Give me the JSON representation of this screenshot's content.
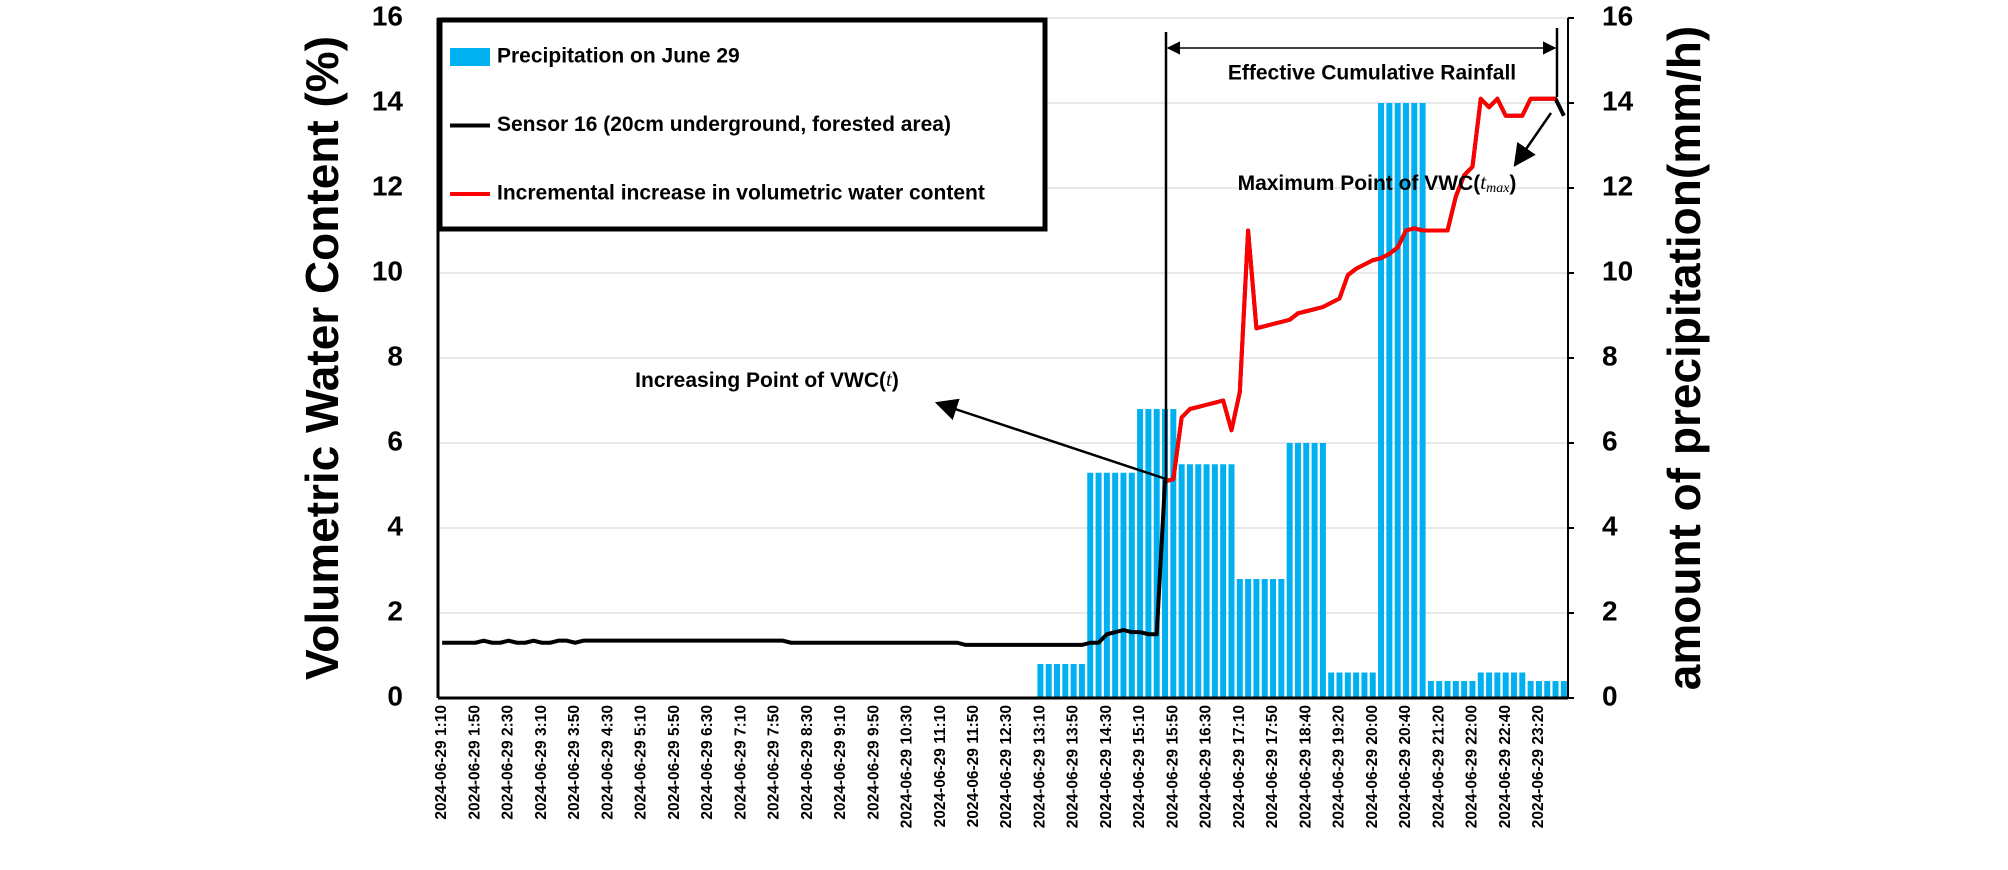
{
  "chart_data": {
    "type": "combo",
    "ylabel": "Volumetric Water Content (%)",
    "y2label": "amount of precipitation(mm/h)",
    "ylim": [
      0,
      16
    ],
    "yticks": [
      0,
      2,
      4,
      6,
      8,
      10,
      12,
      14,
      16
    ],
    "y2lim": [
      0,
      16
    ],
    "y2ticks": [
      0,
      2,
      4,
      6,
      8,
      10,
      12,
      14,
      16
    ],
    "grid": true,
    "legend": "upper left",
    "annotations": {
      "effective": "Effective Cumulative Rainfall",
      "increasing": [
        "Increasing Point of VWC(",
        "t",
        ")"
      ],
      "maximum": [
        "Maximum Point of VWC(",
        "t",
        "max",
        ")"
      ]
    },
    "categories": [
      "2024-06-29 1:10",
      null,
      null,
      null,
      "2024-06-29 1:50",
      null,
      null,
      null,
      "2024-06-29 2:30",
      null,
      null,
      null,
      "2024-06-29 3:10",
      null,
      null,
      null,
      "2024-06-29 3:50",
      null,
      null,
      null,
      "2024-06-29 4:30",
      null,
      null,
      null,
      "2024-06-29 5:10",
      null,
      null,
      null,
      "2024-06-29 5:50",
      null,
      null,
      null,
      "2024-06-29 6:30",
      null,
      null,
      null,
      "2024-06-29 7:10",
      null,
      null,
      null,
      "2024-06-29 7:50",
      null,
      null,
      null,
      "2024-06-29 8:30",
      null,
      null,
      null,
      "2024-06-29 9:10",
      null,
      null,
      null,
      "2024-06-29 9:50",
      null,
      null,
      null,
      "2024-06-29 10:30",
      null,
      null,
      null,
      "2024-06-29 11:10",
      null,
      null,
      null,
      "2024-06-29 11:50",
      null,
      null,
      null,
      "2024-06-29 12:30",
      null,
      null,
      null,
      "2024-06-29 13:10",
      null,
      null,
      null,
      "2024-06-29 13:50",
      null,
      null,
      null,
      "2024-06-29 14:30",
      null,
      null,
      null,
      "2024-06-29 15:10",
      null,
      null,
      null,
      "2024-06-29 15:50",
      null,
      null,
      null,
      "2024-06-29 16:30",
      null,
      null,
      null,
      "2024-06-29 17:10",
      null,
      null,
      null,
      "2024-06-29 17:50",
      null,
      null,
      null,
      "2024-06-29 18:40",
      null,
      null,
      null,
      "2024-06-29 19:20",
      null,
      null,
      null,
      "2024-06-29 20:00",
      null,
      null,
      null,
      "2024-06-29 20:40",
      null,
      null,
      null,
      "2024-06-29 21:20",
      null,
      null,
      null,
      "2024-06-29 22:00",
      null,
      null,
      null,
      "2024-06-29 22:40",
      null,
      null,
      null,
      "2024-06-29 23:20",
      null,
      null,
      null
    ],
    "series": [
      {
        "name": "Precipitation on June 29",
        "type": "bar",
        "axis": "y2",
        "color": "#00b0f0",
        "values": [
          0,
          0,
          0,
          0,
          0,
          0,
          0,
          0,
          0,
          0,
          0,
          0,
          0,
          0,
          0,
          0,
          0,
          0,
          0,
          0,
          0,
          0,
          0,
          0,
          0,
          0,
          0,
          0,
          0,
          0,
          0,
          0,
          0,
          0,
          0,
          0,
          0,
          0,
          0,
          0,
          0,
          0,
          0,
          0,
          0,
          0,
          0,
          0,
          0,
          0,
          0,
          0,
          0,
          0,
          0,
          0,
          0,
          0,
          0,
          0,
          0,
          0,
          0,
          0,
          0,
          0,
          0,
          0,
          0,
          0,
          0,
          0,
          0.8,
          0.8,
          0.8,
          0.8,
          0.8,
          0.8,
          5.3,
          5.3,
          5.3,
          5.3,
          5.3,
          5.3,
          6.8,
          6.8,
          6.8,
          6.8,
          6.8,
          5.5,
          5.5,
          5.5,
          5.5,
          5.5,
          5.5,
          5.5,
          2.8,
          2.8,
          2.8,
          2.8,
          2.8,
          2.8,
          6.0,
          6.0,
          6.0,
          6.0,
          6.0,
          0.6,
          0.6,
          0.6,
          0.6,
          0.6,
          0.6,
          14,
          14,
          14,
          14,
          14,
          14,
          0.4,
          0.4,
          0.4,
          0.4,
          0.4,
          0.4,
          0.6,
          0.6,
          0.6,
          0.6,
          0.6,
          0.6,
          0.4,
          0.4,
          0.4,
          0.4,
          0.4
        ]
      },
      {
        "name": "Sensor 16 (20cm underground, forested area)",
        "type": "line",
        "color": "#000000",
        "values": [
          1.3,
          1.3,
          1.3,
          1.3,
          1.3,
          1.35,
          1.3,
          1.3,
          1.35,
          1.3,
          1.3,
          1.35,
          1.3,
          1.3,
          1.35,
          1.35,
          1.3,
          1.35,
          1.35,
          1.35,
          1.35,
          1.35,
          1.35,
          1.35,
          1.35,
          1.35,
          1.35,
          1.35,
          1.35,
          1.35,
          1.35,
          1.35,
          1.35,
          1.35,
          1.35,
          1.35,
          1.35,
          1.35,
          1.35,
          1.35,
          1.35,
          1.35,
          1.3,
          1.3,
          1.3,
          1.3,
          1.3,
          1.3,
          1.3,
          1.3,
          1.3,
          1.3,
          1.3,
          1.3,
          1.3,
          1.3,
          1.3,
          1.3,
          1.3,
          1.3,
          1.3,
          1.3,
          1.3,
          1.25,
          1.25,
          1.25,
          1.25,
          1.25,
          1.25,
          1.25,
          1.25,
          1.25,
          1.25,
          1.25,
          1.25,
          1.25,
          1.25,
          1.25,
          1.3,
          1.3,
          1.5,
          1.55,
          1.6,
          1.55,
          1.55,
          1.5,
          1.5,
          5.1,
          5.15,
          6.6,
          6.8,
          6.85,
          6.9,
          6.95,
          7.0,
          6.3,
          7.2,
          11.0,
          8.7,
          8.75,
          8.8,
          8.85,
          8.9,
          9.05,
          9.1,
          9.15,
          9.2,
          9.3,
          9.4,
          9.95,
          10.1,
          10.2,
          10.3,
          10.35,
          10.45,
          10.6,
          11.0,
          11.05,
          11.0,
          11.0,
          11.0,
          11.0,
          11.8,
          12.3,
          12.5,
          14.1,
          13.9,
          14.1,
          13.7,
          13.7,
          13.7,
          14.1,
          14.1,
          14.1,
          14.1,
          13.7
        ]
      },
      {
        "name": "Incremental increase in volumetric water content",
        "type": "line",
        "color": "#ff0000",
        "values": [
          null,
          null,
          null,
          null,
          null,
          null,
          null,
          null,
          null,
          null,
          null,
          null,
          null,
          null,
          null,
          null,
          null,
          null,
          null,
          null,
          null,
          null,
          null,
          null,
          null,
          null,
          null,
          null,
          null,
          null,
          null,
          null,
          null,
          null,
          null,
          null,
          null,
          null,
          null,
          null,
          null,
          null,
          null,
          null,
          null,
          null,
          null,
          null,
          null,
          null,
          null,
          null,
          null,
          null,
          null,
          null,
          null,
          null,
          null,
          null,
          null,
          null,
          null,
          null,
          null,
          null,
          null,
          null,
          null,
          null,
          null,
          null,
          null,
          null,
          null,
          null,
          null,
          null,
          null,
          null,
          null,
          null,
          null,
          null,
          null,
          null,
          null,
          5.1,
          5.15,
          6.6,
          6.8,
          6.85,
          6.9,
          6.95,
          7.0,
          6.3,
          7.2,
          11.0,
          8.7,
          8.75,
          8.8,
          8.85,
          8.9,
          9.05,
          9.1,
          9.15,
          9.2,
          9.3,
          9.4,
          9.95,
          10.1,
          10.2,
          10.3,
          10.35,
          10.45,
          10.6,
          11.0,
          11.05,
          11.0,
          11.0,
          11.0,
          11.0,
          11.8,
          12.3,
          12.5,
          14.1,
          13.9,
          14.1,
          13.7,
          13.7,
          13.7,
          14.1,
          14.1,
          14.1,
          14.1,
          null
        ]
      }
    ]
  }
}
